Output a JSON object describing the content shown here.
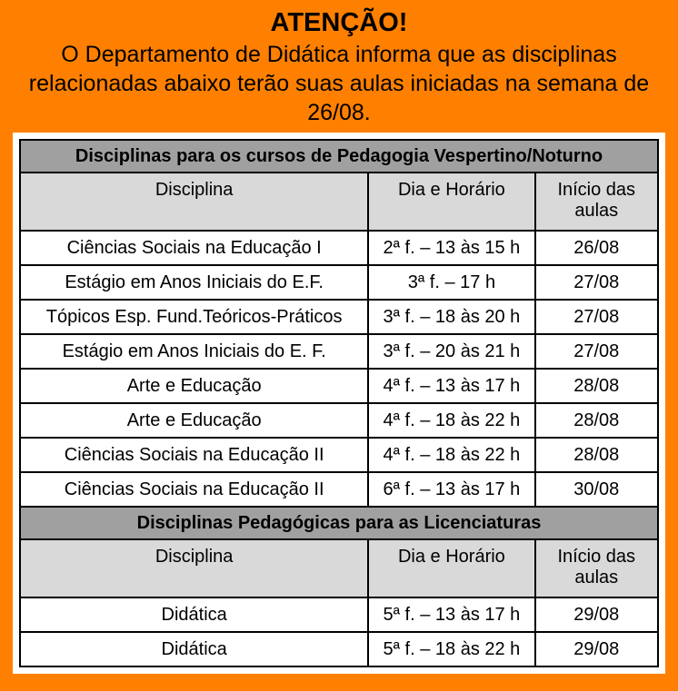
{
  "notice": {
    "title": "ATENÇÃO!",
    "body": "O Departamento de Didática informa que as disciplinas relacionadas abaixo terão suas aulas iniciadas na semana de 26/08."
  },
  "colors": {
    "background_orange": "#ff8000",
    "section_header_bg": "#a0a0a0",
    "column_header_bg": "#d9d9d9",
    "panel_bg": "#ffffff",
    "table_border": "#000000",
    "text": "#000000"
  },
  "table": {
    "sections": [
      {
        "title": "Disciplinas para os cursos de Pedagogia Vespertino/Noturno",
        "columns": [
          "Disciplina",
          "Dia e Horário",
          "Início das aulas"
        ],
        "rows": [
          [
            "Ciências Sociais na Educação I",
            "2ª f. – 13 às 15 h",
            "26/08"
          ],
          [
            "Estágio em Anos Iniciais do E.F.",
            "3ª f. – 17 h",
            "27/08"
          ],
          [
            "Tópicos Esp. Fund.Teóricos-Práticos",
            "3ª f. – 18 às 20 h",
            "27/08"
          ],
          [
            "Estágio em Anos Iniciais do E. F.",
            "3ª f. – 20 às 21 h",
            "27/08"
          ],
          [
            "Arte e Educação",
            "4ª f. – 13 às 17 h",
            "28/08"
          ],
          [
            "Arte e Educação",
            "4ª f. – 18 às 22 h",
            "28/08"
          ],
          [
            "Ciências Sociais na Educação II",
            "4ª f. – 18 às 22 h",
            "28/08"
          ],
          [
            "Ciências Sociais na Educação II",
            "6ª f. – 13 às 17 h",
            "30/08"
          ]
        ]
      },
      {
        "title": "Disciplinas Pedagógicas para as Licenciaturas",
        "columns": [
          "Disciplina",
          "Dia e Horário",
          "Início das aulas"
        ],
        "rows": [
          [
            "Didática",
            "5ª f. – 13 às 17 h",
            "29/08"
          ],
          [
            "Didática",
            "5ª f. – 18 às 22 h",
            "29/08"
          ]
        ]
      }
    ]
  }
}
